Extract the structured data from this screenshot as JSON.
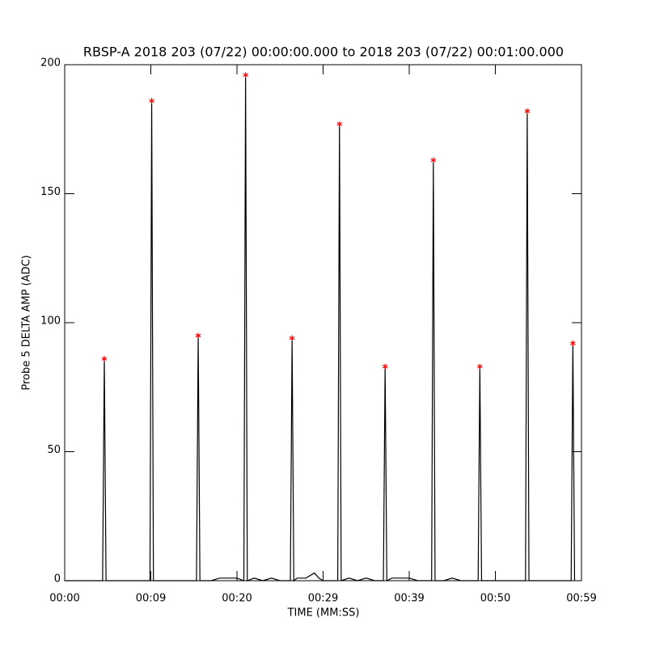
{
  "chart_data": {
    "type": "line",
    "title": "RBSP-A 2018 203 (07/22) 00:00:00.000 to 2018 203 (07/22) 00:01:00.000",
    "x_label": "TIME (MM:SS)",
    "y_label": "Probe 5 DELTA AMP (ADC)",
    "xlim": [
      0,
      60
    ],
    "ylim": [
      0,
      200
    ],
    "xticks": [
      {
        "value": 0,
        "label": "00:00"
      },
      {
        "value": 10,
        "label": "00:09"
      },
      {
        "value": 20,
        "label": "00:20"
      },
      {
        "value": 30,
        "label": "00:29"
      },
      {
        "value": 40,
        "label": "00:39"
      },
      {
        "value": 50,
        "label": "00:50"
      },
      {
        "value": 60,
        "label": "00:59"
      }
    ],
    "yticks": [
      0,
      50,
      100,
      150,
      200
    ],
    "series": [
      {
        "color": "#000000",
        "marker": "none",
        "x": [
          0,
          4.4,
          4.6,
          4.8,
          9.9,
          10.1,
          10.3,
          15.3,
          15.5,
          15.7,
          17,
          18,
          19,
          20,
          20.8,
          21.0,
          21.2,
          22,
          23,
          24,
          25,
          26.2,
          26.4,
          26.6,
          27,
          28,
          29,
          29.5,
          30,
          31.7,
          31.9,
          32.1,
          33,
          34,
          35,
          36,
          37.0,
          37.2,
          37.4,
          38,
          39,
          40,
          41,
          42.6,
          42.8,
          43,
          44,
          45,
          46,
          48.0,
          48.2,
          48.4,
          50,
          53.5,
          53.7,
          53.9,
          58.8,
          59.0,
          59.2
        ],
        "values": [
          0,
          0,
          86,
          0,
          0,
          186,
          0,
          0,
          95,
          0,
          0,
          1,
          1,
          1,
          0,
          196,
          0,
          1,
          0,
          1,
          0,
          0,
          94,
          0,
          1,
          1,
          3,
          1,
          0,
          0,
          177,
          0,
          1,
          0,
          1,
          0,
          0,
          83,
          0,
          1,
          1,
          1,
          0,
          0,
          163,
          0,
          0,
          1,
          0,
          0,
          83,
          0,
          0,
          0,
          182,
          0,
          0,
          92,
          0
        ]
      },
      {
        "color": "#ff0000",
        "marker": "asterisk",
        "x": [
          4.6,
          10.1,
          15.5,
          21.0,
          26.4,
          31.9,
          37.2,
          42.8,
          48.2,
          53.7,
          59.0
        ],
        "values": [
          86,
          186,
          95,
          196,
          94,
          177,
          83,
          163,
          83,
          182,
          92
        ]
      }
    ]
  }
}
